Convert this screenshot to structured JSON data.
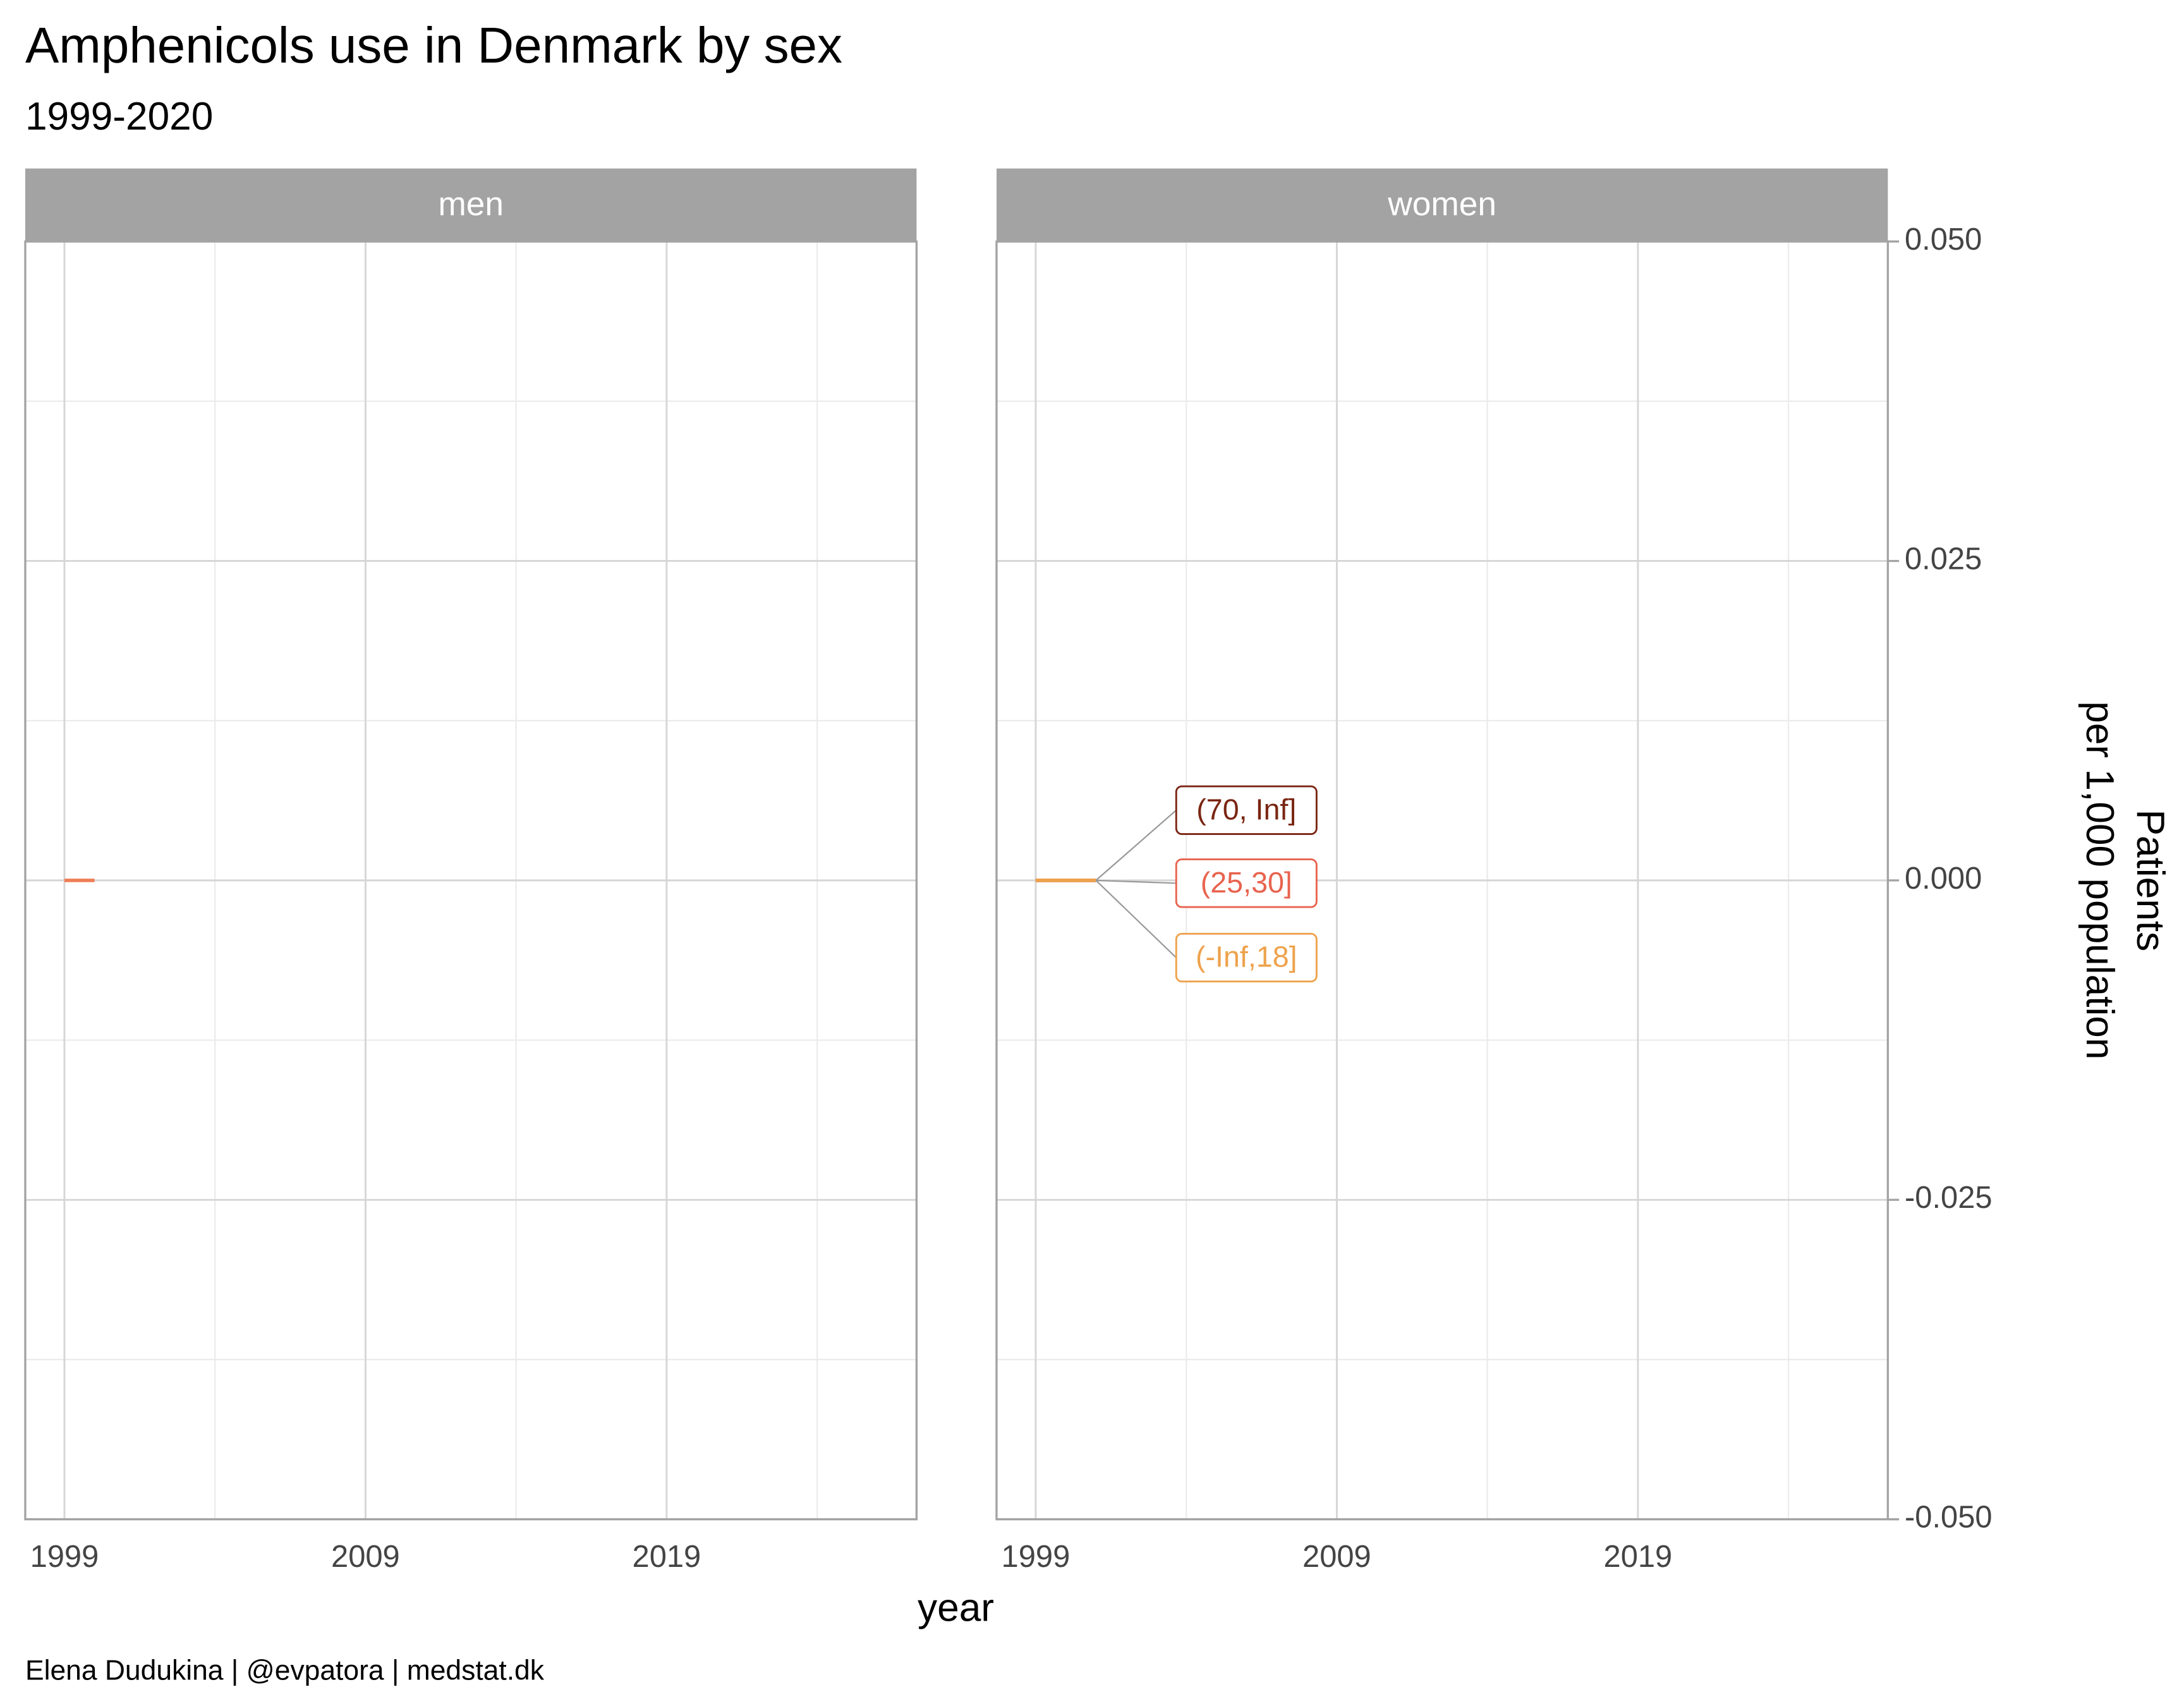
{
  "chart_data": {
    "type": "line",
    "title": "Amphenicols use in Denmark by sex",
    "subtitle": "1999-2020",
    "xlabel": "year",
    "ylabel": [
      "Patients",
      "per 1,000 population"
    ],
    "caption": "Elena Dudukina | @evpatora | medstat.dk",
    "xlim": [
      1997.7,
      2027.3
    ],
    "xticks": [
      1999,
      2009,
      2019
    ],
    "xminor": [
      2004,
      2014,
      2024
    ],
    "ylim": [
      -0.05,
      0.05
    ],
    "yticks": [
      {
        "value": 0.05,
        "label": "0.050"
      },
      {
        "value": 0.025,
        "label": "0.025"
      },
      {
        "value": 0,
        "label": "0.000"
      },
      {
        "value": -0.025,
        "label": "-0.025"
      },
      {
        "value": -0.05,
        "label": "-0.050"
      }
    ],
    "yminor": [
      0.0375,
      0.0125,
      -0.0125,
      -0.0375
    ],
    "grid": true,
    "panels": [
      {
        "name": "men",
        "series": [
          {
            "color": "#ef7d55",
            "x": [
              1999,
              2000
            ],
            "values": [
              0,
              0
            ]
          }
        ]
      },
      {
        "name": "women",
        "series": [
          {
            "name": "(70, Inf]",
            "color": "#7a2613",
            "x": [
              1999,
              2000,
              2001
            ],
            "values": [
              0,
              0,
              0
            ]
          },
          {
            "name": "(25,30]",
            "color": "#e8634e",
            "x": [
              1999,
              2000,
              2001
            ],
            "values": [
              0,
              0,
              0
            ]
          },
          {
            "name": "(-Inf,18]",
            "color": "#eea24c",
            "x": [
              1999,
              2000,
              2001
            ],
            "values": [
              0,
              0,
              0
            ]
          }
        ]
      }
    ]
  }
}
